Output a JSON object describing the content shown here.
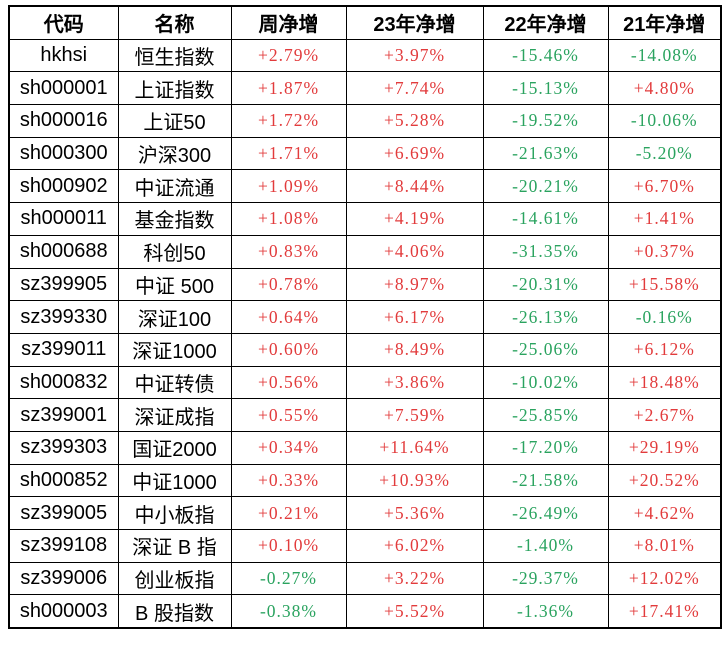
{
  "colors": {
    "positive": "#e23b3c",
    "negative": "#2aa35f",
    "grid": "#000000",
    "header_text": "#000000",
    "background": "#ffffff"
  },
  "chart_data": {
    "type": "table",
    "title": "",
    "columns": [
      "代码",
      "名称",
      "周净增",
      "23年净增",
      "22年净增",
      "21年净增"
    ],
    "rows": [
      [
        "hkhsi",
        "恒生指数",
        "+2.79%",
        "+3.97%",
        "-15.46%",
        "-14.08%"
      ],
      [
        "sh000001",
        "上证指数",
        "+1.87%",
        "+7.74%",
        "-15.13%",
        "+4.80%"
      ],
      [
        "sh000016",
        "上证50",
        "+1.72%",
        "+5.28%",
        "-19.52%",
        "-10.06%"
      ],
      [
        "sh000300",
        "沪深300",
        "+1.71%",
        "+6.69%",
        "-21.63%",
        "-5.20%"
      ],
      [
        "sh000902",
        "中证流通",
        "+1.09%",
        "+8.44%",
        "-20.21%",
        "+6.70%"
      ],
      [
        "sh000011",
        "基金指数",
        "+1.08%",
        "+4.19%",
        "-14.61%",
        "+1.41%"
      ],
      [
        "sh000688",
        "科创50",
        "+0.83%",
        "+4.06%",
        "-31.35%",
        "+0.37%"
      ],
      [
        "sz399905",
        "中证 500",
        "+0.78%",
        "+8.97%",
        "-20.31%",
        "+15.58%"
      ],
      [
        "sz399330",
        "深证100",
        "+0.64%",
        "+6.17%",
        "-26.13%",
        "-0.16%"
      ],
      [
        "sz399011",
        "深证1000",
        "+0.60%",
        "+8.49%",
        "-25.06%",
        "+6.12%"
      ],
      [
        "sh000832",
        "中证转债",
        "+0.56%",
        "+3.86%",
        "-10.02%",
        "+18.48%"
      ],
      [
        "sz399001",
        "深证成指",
        "+0.55%",
        "+7.59%",
        "-25.85%",
        "+2.67%"
      ],
      [
        "sz399303",
        "国证2000",
        "+0.34%",
        "+11.64%",
        "-17.20%",
        "+29.19%"
      ],
      [
        "sh000852",
        "中证1000",
        "+0.33%",
        "+10.93%",
        "-21.58%",
        "+20.52%"
      ],
      [
        "sz399005",
        "中小板指",
        "+0.21%",
        "+5.36%",
        "-26.49%",
        "+4.62%"
      ],
      [
        "sz399108",
        "深证 B 指",
        "+0.10%",
        "+6.02%",
        "-1.40%",
        "+8.01%"
      ],
      [
        "sz399006",
        "创业板指",
        "-0.27%",
        "+3.22%",
        "-29.37%",
        "+12.02%"
      ],
      [
        "sh000003",
        "B 股指数",
        "-0.38%",
        "+5.52%",
        "-1.36%",
        "+17.41%"
      ]
    ]
  }
}
